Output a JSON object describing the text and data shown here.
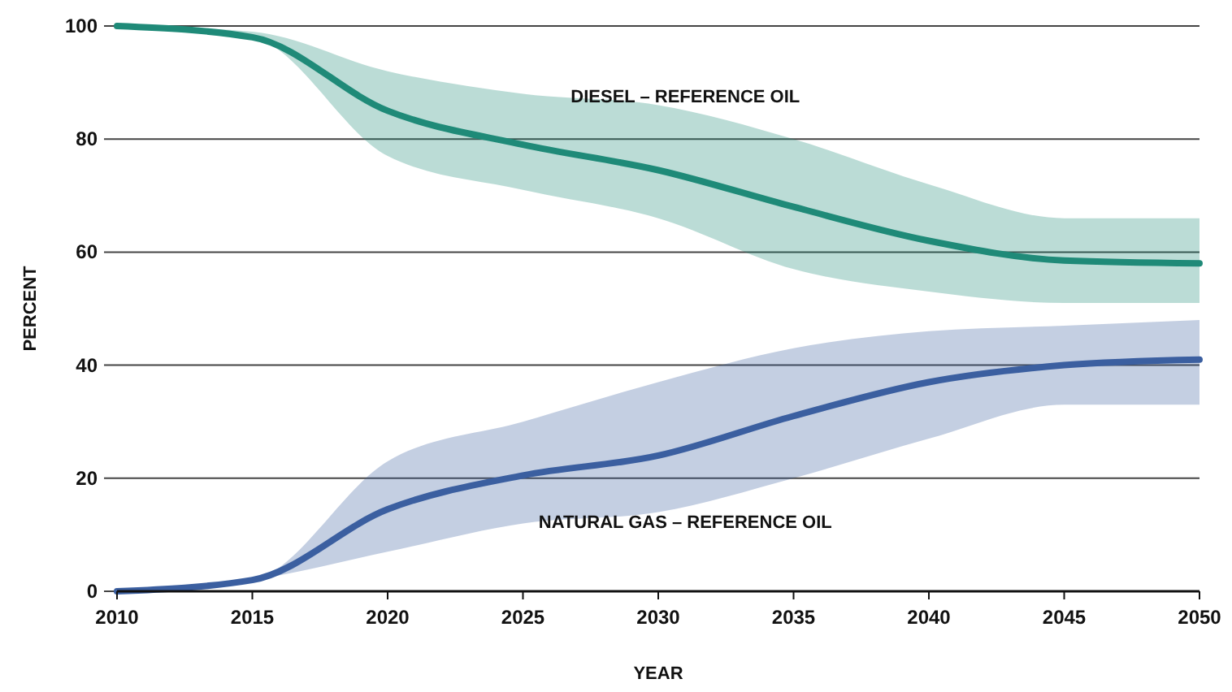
{
  "chart_data": {
    "type": "line",
    "xlabel": "YEAR",
    "ylabel": "PERCENT",
    "x": [
      2010,
      2015,
      2020,
      2025,
      2030,
      2035,
      2040,
      2045,
      2050
    ],
    "xlim": [
      2010,
      2050
    ],
    "xticks": [
      2010,
      2015,
      2020,
      2025,
      2030,
      2035,
      2040,
      2045,
      2050
    ],
    "ylim": [
      0,
      100
    ],
    "yticks": [
      0,
      20,
      40,
      60,
      80,
      100
    ],
    "grid": "y",
    "marker": "none",
    "line_style": "solid",
    "series": [
      {
        "name": "DIESEL – REFERENCE OIL",
        "color": "#1f8a78",
        "values": [
          100,
          98,
          85,
          79,
          74.5,
          68,
          62,
          58.5,
          58
        ],
        "lower": [
          100,
          98,
          77,
          71,
          66,
          57,
          53,
          51,
          51
        ],
        "upper": [
          100,
          99,
          92,
          88,
          86,
          80,
          72,
          66,
          66
        ]
      },
      {
        "name": "NATURAL GAS – REFERENCE OIL",
        "color": "#3b5fa0",
        "values": [
          0,
          2,
          14.5,
          20.5,
          24,
          31,
          37,
          40,
          41
        ],
        "lower": [
          0,
          2,
          7,
          12,
          14,
          20,
          27,
          33,
          33
        ],
        "upper": [
          0,
          2,
          23,
          30,
          37,
          43,
          46,
          47,
          48
        ]
      }
    ]
  }
}
